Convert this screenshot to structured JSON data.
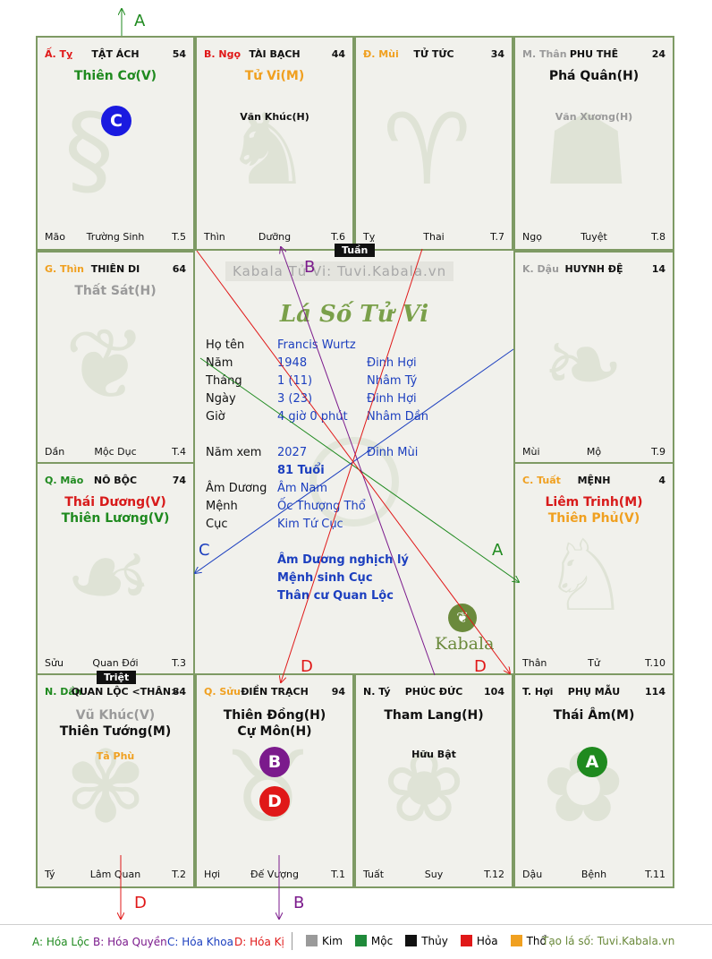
{
  "watermark": "Kabala Tử Vi: Tuvi.Kabala.vn",
  "chart_title": "Lá Số Tử Vi",
  "logo_text": "Kabala",
  "markers": {
    "tuan": "Tuần",
    "triet": "Triệt"
  },
  "cells": {
    "ty_snake": {
      "can": "Ấ. Tỵ",
      "name": "TẬT ÁCH",
      "num": "54",
      "stars": [
        {
          "text": "Thiên Cơ(V)",
          "color": "#1f8a1f"
        }
      ],
      "minor": "",
      "chi": "Mão",
      "stage": "Trường Sinh",
      "t": "T.5"
    },
    "ngo": {
      "can": "B. Ngọ",
      "name": "TÀI BẠCH",
      "num": "44",
      "stars": [
        {
          "text": "Tử Vi(M)",
          "color": "#f0a020"
        }
      ],
      "minor": "Văn Khúc(H)",
      "minor_color": "#111111",
      "chi": "Thìn",
      "stage": "Dưỡng",
      "t": "T.6"
    },
    "mui": {
      "can": "Đ. Mùi",
      "name": "TỬ TỨC",
      "num": "34",
      "stars": [],
      "minor": "",
      "chi": "Tỵ",
      "stage": "Thai",
      "t": "T.7"
    },
    "than": {
      "can": "M. Thân",
      "name": "PHU THÊ",
      "num": "24",
      "stars": [
        {
          "text": "Phá Quân(H)",
          "color": "#111111"
        }
      ],
      "minor": "Văn Xương(H)",
      "minor_color": "#9a9a9a",
      "chi": "Ngọ",
      "stage": "Tuyệt",
      "t": "T.8"
    },
    "thin": {
      "can": "G. Thìn",
      "name": "THIÊN DI",
      "num": "64",
      "stars": [
        {
          "text": "Thất Sát(H)",
          "color": "#9a9a9a"
        }
      ],
      "minor": "",
      "chi": "Dần",
      "stage": "Mộc Dục",
      "t": "T.4"
    },
    "dau": {
      "can": "K. Dậu",
      "name": "HUYNH ĐỆ",
      "num": "14",
      "stars": [],
      "minor": "",
      "chi": "Mùi",
      "stage": "Mộ",
      "t": "T.9"
    },
    "mao": {
      "can": "Q. Mão",
      "name": "NÔ BỘC",
      "num": "74",
      "stars": [
        {
          "text": "Thái Dương(V)",
          "color": "#d81b1b"
        },
        {
          "text": "Thiên Lương(V)",
          "color": "#1f8a1f"
        }
      ],
      "minor": "",
      "chi": "Sửu",
      "stage": "Quan Đới",
      "t": "T.3"
    },
    "tuat": {
      "can": "C. Tuất",
      "name": "MỆNH",
      "num": "4",
      "stars": [
        {
          "text": "Liêm Trinh(M)",
          "color": "#d81b1b"
        },
        {
          "text": "Thiên Phủ(V)",
          "color": "#f0a020"
        }
      ],
      "minor": "",
      "chi": "Thân",
      "stage": "Tử",
      "t": "T.10"
    },
    "dan": {
      "can": "N. Dần",
      "name": "QUAN LỘC <THÂN>",
      "num": "84",
      "stars": [
        {
          "text": "Vũ Khúc(V)",
          "color": "#9a9a9a"
        },
        {
          "text": "Thiên Tướng(M)",
          "color": "#111111"
        }
      ],
      "minor": "Tả Phù",
      "minor_color": "#f0a020",
      "chi": "Tý",
      "stage": "Lâm Quan",
      "t": "T.2"
    },
    "suu": {
      "can": "Q. Sửu",
      "name": "ĐIỀN TRẠCH",
      "num": "94",
      "stars": [
        {
          "text": "Thiên Đồng(H)",
          "color": "#111111"
        },
        {
          "text": "Cự Môn(H)",
          "color": "#111111"
        }
      ],
      "minor": "",
      "chi": "Hợi",
      "stage": "Đế Vượng",
      "t": "T.1"
    },
    "ty_rat": {
      "can": "N. Tý",
      "name": "PHÚC ĐỨC",
      "num": "104",
      "stars": [
        {
          "text": "Tham Lang(H)",
          "color": "#111111"
        }
      ],
      "minor": "Hữu Bật",
      "minor_color": "#111111",
      "chi": "Tuất",
      "stage": "Suy",
      "t": "T.12"
    },
    "hoi": {
      "can": "T. Hợi",
      "name": "PHỤ MẪU",
      "num": "114",
      "stars": [
        {
          "text": "Thái Âm(M)",
          "color": "#111111"
        }
      ],
      "minor": "",
      "chi": "Dậu",
      "stage": "Bệnh",
      "t": "T.11"
    }
  },
  "badges": {
    "c": "C",
    "b": "B",
    "d": "D",
    "a": "A"
  },
  "arrow_labels": {
    "a": "A",
    "b": "B",
    "c": "C",
    "d": "D"
  },
  "info": {
    "ho_ten": {
      "label": "Họ tên",
      "value": "Francis Wurtz"
    },
    "nam": {
      "label": "Năm",
      "value": "1948",
      "extra": "Đinh Hợi"
    },
    "thang": {
      "label": "Tháng",
      "value": "1 (11)",
      "extra": "Nhâm Tý"
    },
    "ngay": {
      "label": "Ngày",
      "value": "3 (23)",
      "extra": "Đinh Hợi"
    },
    "gio": {
      "label": "Giờ",
      "value": "4 giờ 0 phút",
      "extra": "Nhâm Dần"
    },
    "nam_xem": {
      "label": "Năm xem",
      "value": "2027",
      "extra": "Đinh Mùi"
    },
    "tuoi": "81 Tuổi",
    "am_duong": {
      "label": "Âm Dương",
      "value": "Âm Nam"
    },
    "menh": {
      "label": "Mệnh",
      "value": "Ốc Thượng Thổ"
    },
    "cuc": {
      "label": "Cục",
      "value": "Kim Tứ Cục"
    },
    "notes": [
      "Âm Dương nghịch lý",
      "Mệnh sinh Cục",
      "Thân cư Quan Lộc"
    ]
  },
  "legend": {
    "hoa_loc": "A: Hóa Lộc",
    "hoa_quyen": "B: Hóa Quyền",
    "hoa_khoa": "C: Hóa Khoa",
    "hoa_ki": "D: Hóa Kị",
    "elements": [
      {
        "label": "Kim",
        "color": "#9a9a9a"
      },
      {
        "label": "Mộc",
        "color": "#1f8a3a"
      },
      {
        "label": "Thủy",
        "color": "#111111"
      },
      {
        "label": "Hỏa",
        "color": "#e01818"
      },
      {
        "label": "Thổ",
        "color": "#f0a020"
      }
    ],
    "site": "Tạo lá số: Tuvi.Kabala.vn"
  },
  "colors": {
    "green": "#1f8a1f",
    "purple": "#7b1a8c",
    "blue": "#1c3fbf",
    "red": "#e01818",
    "orange": "#f0a020",
    "grid": "#7e9a64"
  }
}
